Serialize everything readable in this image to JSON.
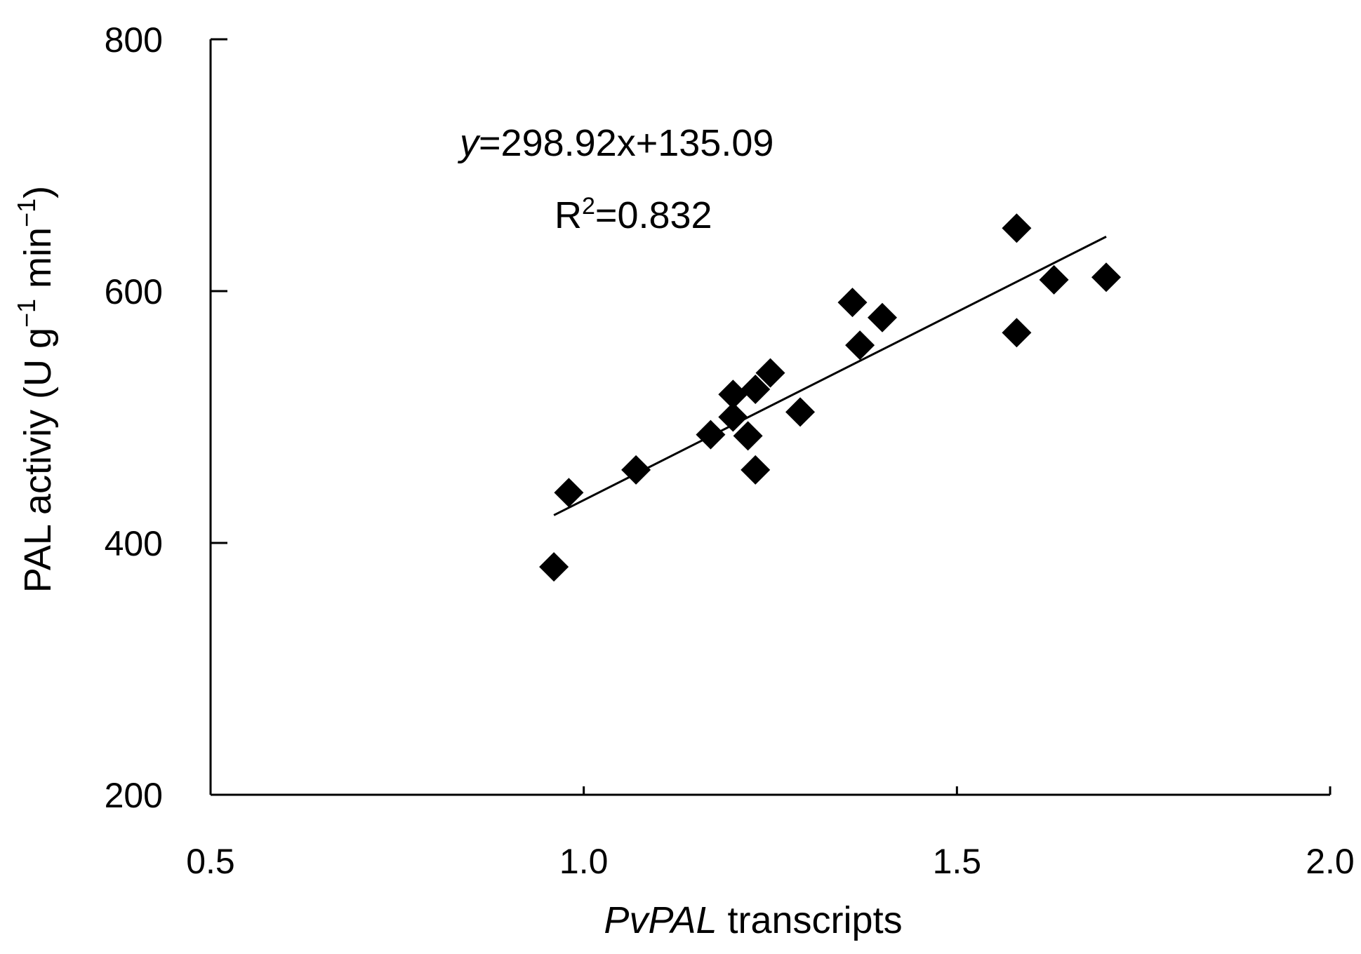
{
  "chart_data": {
    "type": "scatter",
    "xlabel": {
      "italic": "PvPAL",
      "rest": " transcripts"
    },
    "ylabel": {
      "main": "PAL activiy (U g",
      "sup1": "−1",
      "mid": " min",
      "sup2": "−1",
      "end": ")"
    },
    "xlim": [
      0.5,
      2.0
    ],
    "ylim": [
      200,
      800
    ],
    "x_ticks": [
      "0.5",
      "1.0",
      "1.5",
      "2.0"
    ],
    "y_ticks": [
      "200",
      "400",
      "600",
      "800"
    ],
    "equation": {
      "var": "y",
      "rest": "=298.92x+135.09"
    },
    "r_squared": {
      "base": "R",
      "sup": "2",
      "rest": "=0.832"
    },
    "trendline": {
      "slope": 298.92,
      "intercept": 135.09,
      "x_range": [
        0.96,
        1.7
      ]
    },
    "grid": false,
    "points": [
      {
        "x": 0.96,
        "y": 381
      },
      {
        "x": 0.98,
        "y": 440
      },
      {
        "x": 1.07,
        "y": 458
      },
      {
        "x": 1.17,
        "y": 486
      },
      {
        "x": 1.2,
        "y": 518
      },
      {
        "x": 1.2,
        "y": 500
      },
      {
        "x": 1.22,
        "y": 485
      },
      {
        "x": 1.23,
        "y": 458
      },
      {
        "x": 1.23,
        "y": 522
      },
      {
        "x": 1.25,
        "y": 535
      },
      {
        "x": 1.29,
        "y": 504
      },
      {
        "x": 1.36,
        "y": 591
      },
      {
        "x": 1.37,
        "y": 557
      },
      {
        "x": 1.4,
        "y": 579
      },
      {
        "x": 1.58,
        "y": 650
      },
      {
        "x": 1.58,
        "y": 567
      },
      {
        "x": 1.63,
        "y": 609
      },
      {
        "x": 1.7,
        "y": 611
      }
    ]
  }
}
